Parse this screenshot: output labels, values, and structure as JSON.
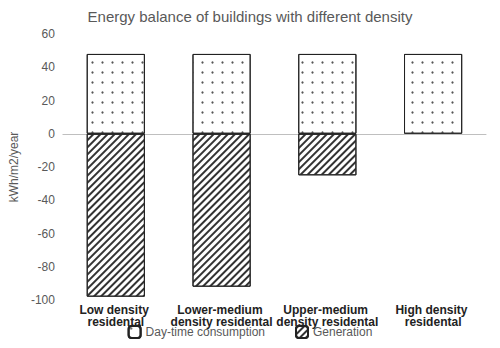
{
  "chart_data": {
    "type": "bar",
    "title": "Energy balance of buildings with different density",
    "y_label": "kWh/m2/year",
    "categories": [
      "Low density residental",
      "Lower-medium density residental",
      "Upper-medium density residental",
      "High density residental"
    ],
    "series": [
      {
        "name": "Day-time consumption",
        "color": "#ffffff",
        "values": [
          48,
          48,
          48,
          48
        ]
      },
      {
        "name": "Generation",
        "color": "#ffffff",
        "values": [
          -98,
          -92,
          -25,
          null
        ]
      }
    ],
    "ylim": [
      -100,
      60
    ],
    "yticks": [
      -100,
      -80,
      -60,
      -40,
      -20,
      0,
      20,
      40,
      60
    ],
    "grid": false,
    "stacked": true,
    "legend": "bottom"
  }
}
